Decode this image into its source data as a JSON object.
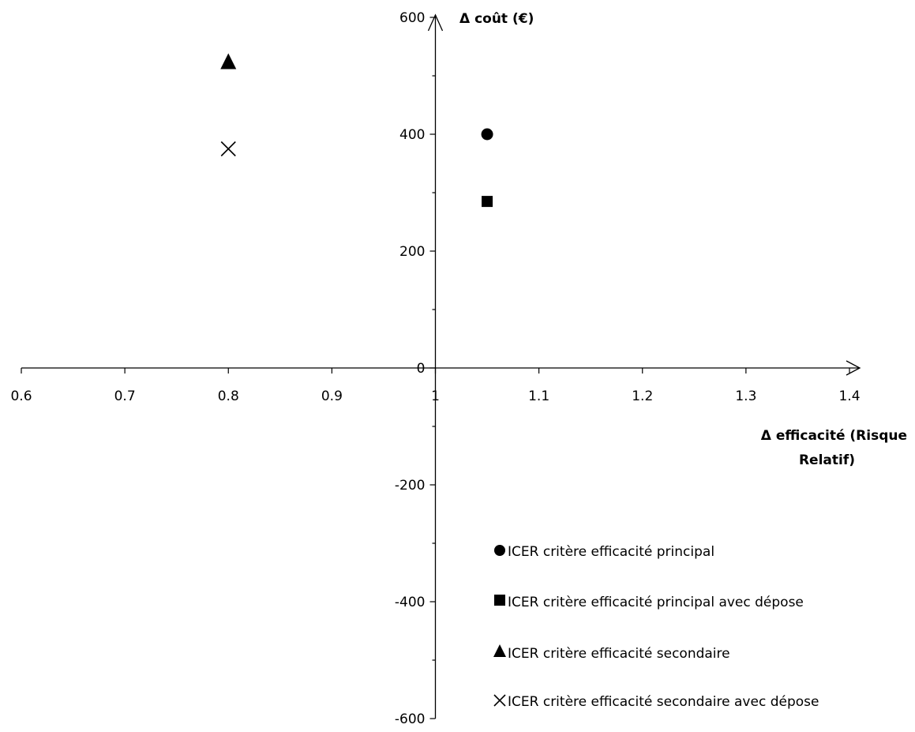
{
  "chart_data": {
    "type": "scatter",
    "title": "",
    "xlabel_lines": [
      "Δ efficacité (Risque",
      "Relatif)"
    ],
    "ylabel": "Δ  coût (€)",
    "xlim": [
      0.6,
      1.4
    ],
    "ylim": [
      -600,
      600
    ],
    "x_ticks": [
      {
        "value": 0.6,
        "label": "0.6"
      },
      {
        "value": 0.7,
        "label": "0.7"
      },
      {
        "value": 0.8,
        "label": "0.8"
      },
      {
        "value": 0.9,
        "label": "0.9"
      },
      {
        "value": 1.0,
        "label": "1"
      },
      {
        "value": 1.1,
        "label": "1.1"
      },
      {
        "value": 1.2,
        "label": "1.2"
      },
      {
        "value": 1.3,
        "label": "1.3"
      },
      {
        "value": 1.4,
        "label": "1.4"
      }
    ],
    "y_ticks": [
      {
        "value": 600,
        "label": "600"
      },
      {
        "value": 400,
        "label": "400"
      },
      {
        "value": 200,
        "label": "200"
      },
      {
        "value": 0,
        "label": "0"
      },
      {
        "value": -200,
        "label": "-200"
      },
      {
        "value": -400,
        "label": "-400"
      },
      {
        "value": -600,
        "label": "-600"
      }
    ],
    "y_minor_ticks": [
      500,
      300,
      100,
      -100,
      -300,
      -500
    ],
    "axes_cross_at": {
      "x": 1.0,
      "y": 0
    },
    "grid": false,
    "legend_position": "bottom-right",
    "series": [
      {
        "name": "ICER critère efficacité principal",
        "marker": "circle",
        "color": "#000000",
        "points": [
          {
            "x": 1.05,
            "y": 400
          }
        ]
      },
      {
        "name": "ICER critère efficacité principal avec dépose",
        "marker": "square",
        "color": "#000000",
        "points": [
          {
            "x": 1.05,
            "y": 285
          }
        ]
      },
      {
        "name": "ICER critère efficacité secondaire",
        "marker": "triangle",
        "color": "#000000",
        "points": [
          {
            "x": 0.8,
            "y": 525
          }
        ]
      },
      {
        "name": "ICER critère efficacité secondaire avec dépose",
        "marker": "x",
        "color": "#000000",
        "points": [
          {
            "x": 0.8,
            "y": 375
          }
        ]
      }
    ]
  }
}
